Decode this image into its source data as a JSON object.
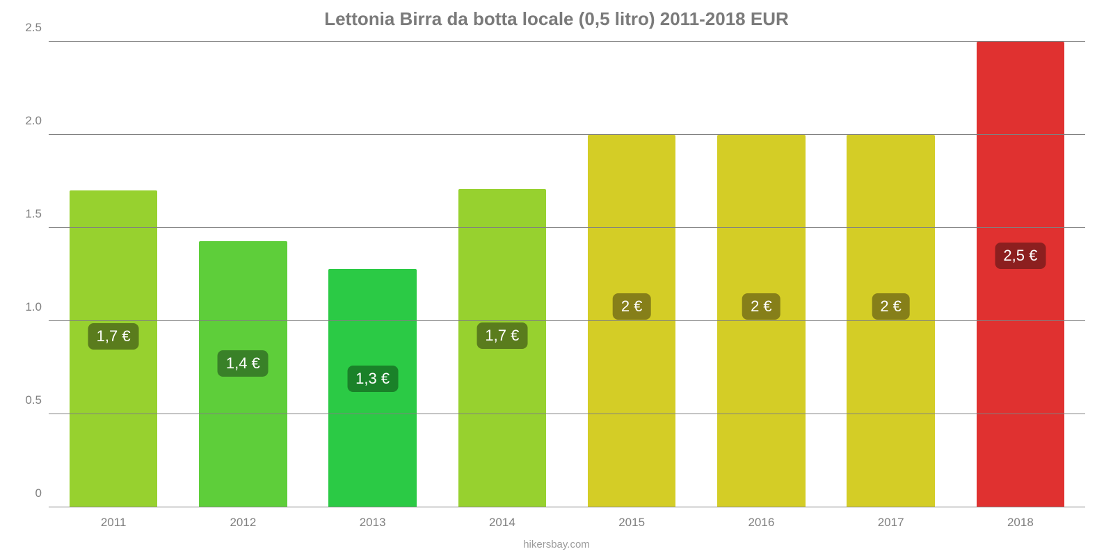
{
  "chart": {
    "type": "bar",
    "title": "Lettonia Birra da botta locale (0,5 litro) 2011-2018 EUR",
    "title_fontsize": 26,
    "title_color": "#7a7a7a",
    "attribution": "hikersbay.com",
    "attribution_fontsize": 15,
    "attribution_color": "#9c9c9c",
    "background_color": "#ffffff",
    "grid_color": "#808080",
    "axis_label_color": "#808080",
    "axis_label_fontsize": 17,
    "ylim": [
      0,
      2.5
    ],
    "yticks": [
      "0",
      "0.5",
      "1.0",
      "1.5",
      "2.0",
      "2.5"
    ],
    "ytick_values": [
      0,
      0.5,
      1.0,
      1.5,
      2.0,
      2.5
    ],
    "bar_width_ratio": 0.68,
    "value_badge_fontsize": 22,
    "value_badge_text_color": "#ffffff",
    "value_badge_offset_pct": 28,
    "categories": [
      "2011",
      "2012",
      "2013",
      "2014",
      "2015",
      "2016",
      "2017",
      "2018"
    ],
    "values": [
      1.7,
      1.43,
      1.28,
      1.71,
      2.0,
      2.0,
      2.0,
      2.5
    ],
    "value_labels": [
      "1,7 €",
      "1,4 €",
      "1,3 €",
      "1,7 €",
      "2 €",
      "2 €",
      "2 €",
      "2,5 €"
    ],
    "bar_colors": [
      "#97d12f",
      "#5ece3a",
      "#2bca45",
      "#97d12f",
      "#d4cd26",
      "#d4cd26",
      "#d4cd26",
      "#e03130"
    ],
    "badge_colors": [
      "#5a7c1d",
      "#398128",
      "#1a8129",
      "#5a7c1d",
      "#867f19",
      "#867f19",
      "#867f19",
      "#8c1f1f"
    ]
  }
}
